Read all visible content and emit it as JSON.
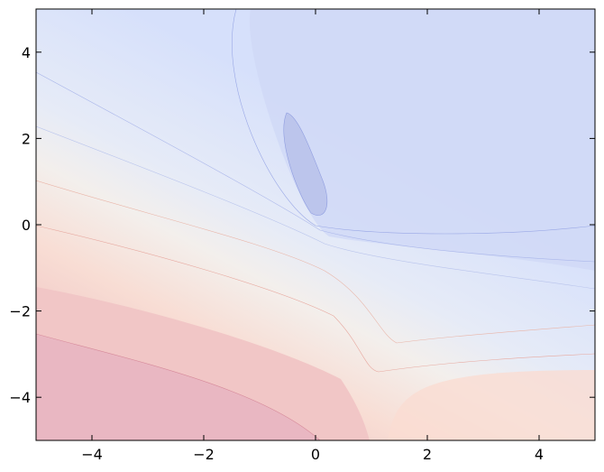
{
  "chart_data": {
    "type": "contour",
    "xlim": [
      -5,
      5
    ],
    "ylim": [
      -5,
      5
    ],
    "xticks": [
      {
        "value": -4,
        "label": "−4"
      },
      {
        "value": -2,
        "label": "−2"
      },
      0,
      2,
      4
    ],
    "yticks": [
      {
        "value": -4,
        "label": "−4"
      },
      {
        "value": -2,
        "label": "−2"
      },
      0,
      2,
      4
    ]
  }
}
